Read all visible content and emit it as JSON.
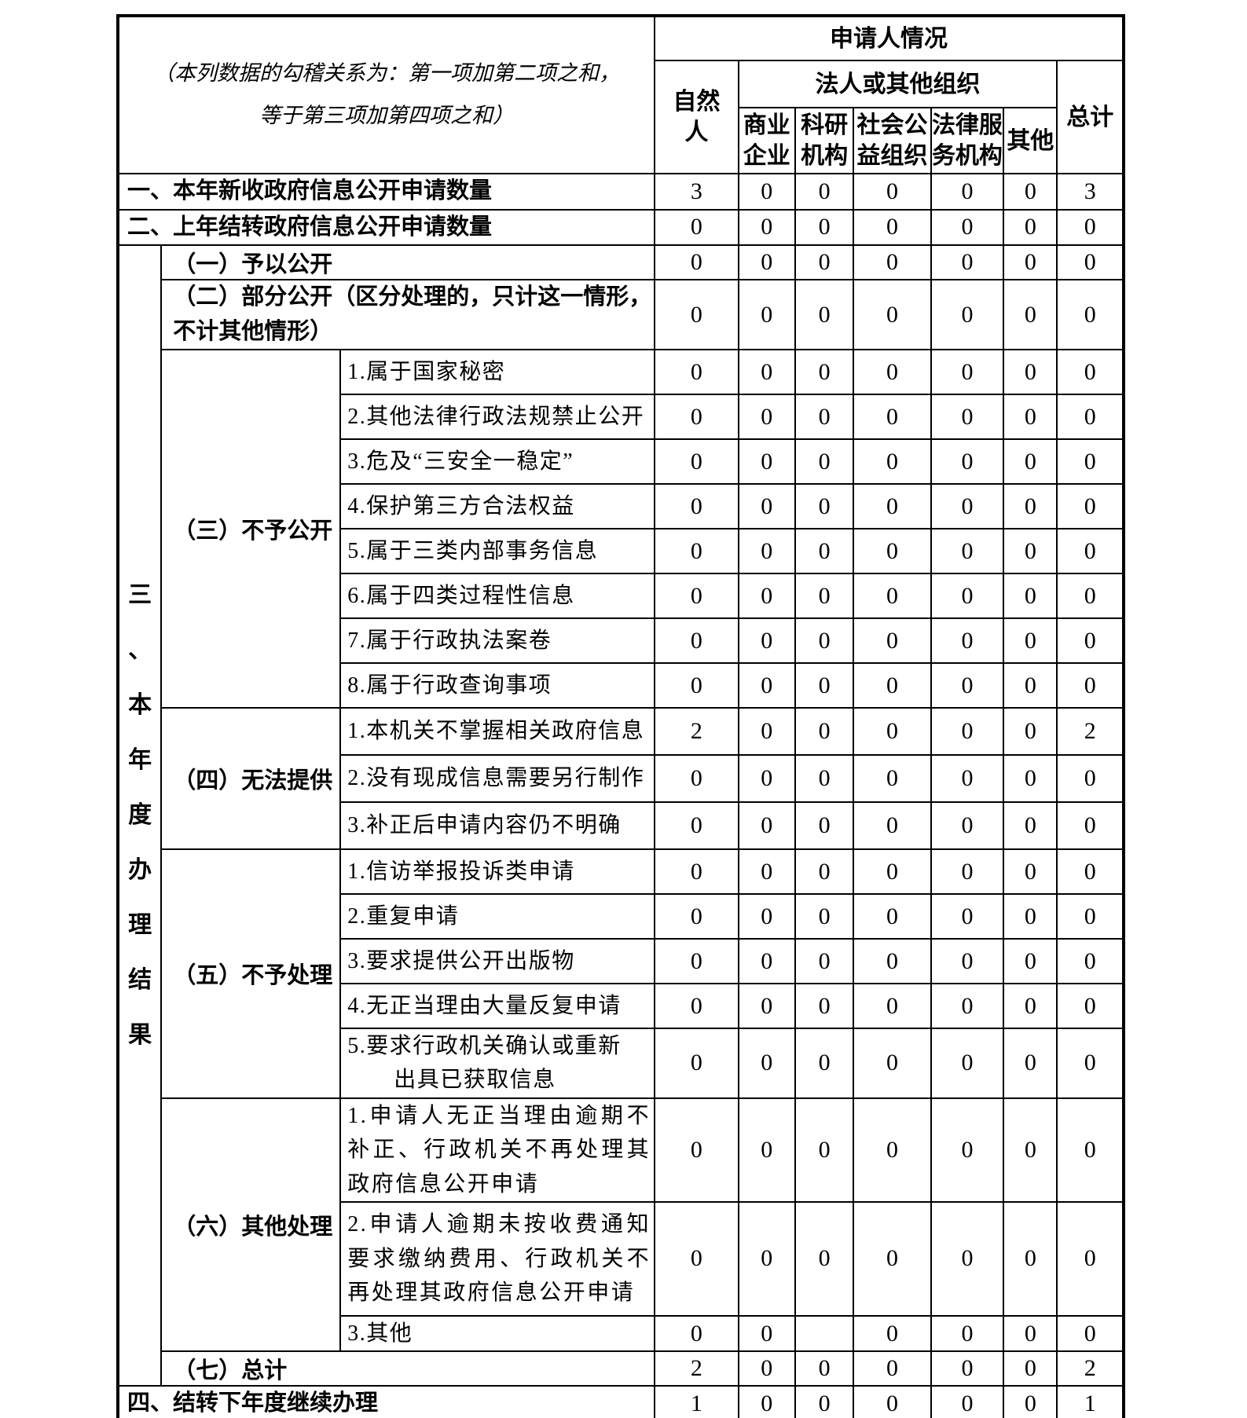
{
  "note": "（本列数据的勾稽关系为：第一项加第二项之和，\n等于第三项加第四项之和）",
  "header": {
    "applicant": "申请人情况",
    "natural_person": "自然人",
    "legal_org": "法人或其他组织",
    "org_types": [
      "商业企业",
      "科研机构",
      "社会公益组织",
      "法律服务机构",
      "其他"
    ],
    "total": "总计"
  },
  "section3_label": "三、本年度办理结果",
  "rows": {
    "r1": {
      "label": "一、本年新收政府信息公开申请数量",
      "values": [
        "3",
        "0",
        "0",
        "0",
        "0",
        "0",
        "3"
      ]
    },
    "r2": {
      "label": "二、上年结转政府信息公开申请数量",
      "values": [
        "0",
        "0",
        "0",
        "0",
        "0",
        "0",
        "0"
      ]
    },
    "g1": {
      "label": "（一）予以公开",
      "values": [
        "0",
        "0",
        "0",
        "0",
        "0",
        "0",
        "0"
      ]
    },
    "g2": {
      "label": "（二）部分公开（区分处理的，只计这一情形，不计其他情形）",
      "values": [
        "0",
        "0",
        "0",
        "0",
        "0",
        "0",
        "0"
      ]
    },
    "g3": {
      "label": "（三）不予公开",
      "items": [
        {
          "label": "1.属于国家秘密",
          "values": [
            "0",
            "0",
            "0",
            "0",
            "0",
            "0",
            "0"
          ]
        },
        {
          "label": "2.其他法律行政法规禁止公开",
          "values": [
            "0",
            "0",
            "0",
            "0",
            "0",
            "0",
            "0"
          ]
        },
        {
          "label": "3.危及“三安全一稳定”",
          "values": [
            "0",
            "0",
            "0",
            "0",
            "0",
            "0",
            "0"
          ]
        },
        {
          "label": "4.保护第三方合法权益",
          "values": [
            "0",
            "0",
            "0",
            "0",
            "0",
            "0",
            "0"
          ]
        },
        {
          "label": "5.属于三类内部事务信息",
          "values": [
            "0",
            "0",
            "0",
            "0",
            "0",
            "0",
            "0"
          ]
        },
        {
          "label": "6.属于四类过程性信息",
          "values": [
            "0",
            "0",
            "0",
            "0",
            "0",
            "0",
            "0"
          ]
        },
        {
          "label": "7.属于行政执法案卷",
          "values": [
            "0",
            "0",
            "0",
            "0",
            "0",
            "0",
            "0"
          ]
        },
        {
          "label": "8.属于行政查询事项",
          "values": [
            "0",
            "0",
            "0",
            "0",
            "0",
            "0",
            "0"
          ]
        }
      ]
    },
    "g4": {
      "label": "（四）无法提供",
      "items": [
        {
          "label": "1.本机关不掌握相关政府信息",
          "values": [
            "2",
            "0",
            "0",
            "0",
            "0",
            "0",
            "2"
          ]
        },
        {
          "label": "2.没有现成信息需要另行制作",
          "values": [
            "0",
            "0",
            "0",
            "0",
            "0",
            "0",
            "0"
          ]
        },
        {
          "label": "3.补正后申请内容仍不明确",
          "values": [
            "0",
            "0",
            "0",
            "0",
            "0",
            "0",
            "0"
          ]
        }
      ]
    },
    "g5": {
      "label": "（五）不予处理",
      "items": [
        {
          "label": "1.信访举报投诉类申请",
          "values": [
            "0",
            "0",
            "0",
            "0",
            "0",
            "0",
            "0"
          ]
        },
        {
          "label": "2.重复申请",
          "values": [
            "0",
            "0",
            "0",
            "0",
            "0",
            "0",
            "0"
          ]
        },
        {
          "label": "3.要求提供公开出版物",
          "values": [
            "0",
            "0",
            "0",
            "0",
            "0",
            "0",
            "0"
          ]
        },
        {
          "label": "4.无正当理由大量反复申请",
          "values": [
            "0",
            "0",
            "0",
            "0",
            "0",
            "0",
            "0"
          ]
        },
        {
          "label": "5.要求行政机关确认或重新\n　　出具已获取信息",
          "values": [
            "0",
            "0",
            "0",
            "0",
            "0",
            "0",
            "0"
          ]
        }
      ]
    },
    "g6": {
      "label": "（六）其他处理",
      "items": [
        {
          "label": "1.申请人无正当理由逾期不补正、行政机关不再处理其政府信息公开申请",
          "values": [
            "0",
            "0",
            "0",
            "0",
            "0",
            "0",
            "0"
          ]
        },
        {
          "label": "2.申请人逾期未按收费通知要求缴纳费用、行政机关不再处理其政府信息公开申请",
          "values": [
            "0",
            "0",
            "0",
            "0",
            "0",
            "0",
            "0"
          ]
        },
        {
          "label": "3.其他",
          "values": [
            "0",
            "0",
            "",
            "0",
            "0",
            "0",
            "0"
          ]
        }
      ]
    },
    "g7": {
      "label": "（七）总计",
      "values": [
        "2",
        "0",
        "0",
        "0",
        "0",
        "0",
        "2"
      ]
    },
    "r4": {
      "label": "四、结转下年度继续办理",
      "values": [
        "1",
        "0",
        "0",
        "0",
        "0",
        "0",
        "1"
      ]
    }
  }
}
